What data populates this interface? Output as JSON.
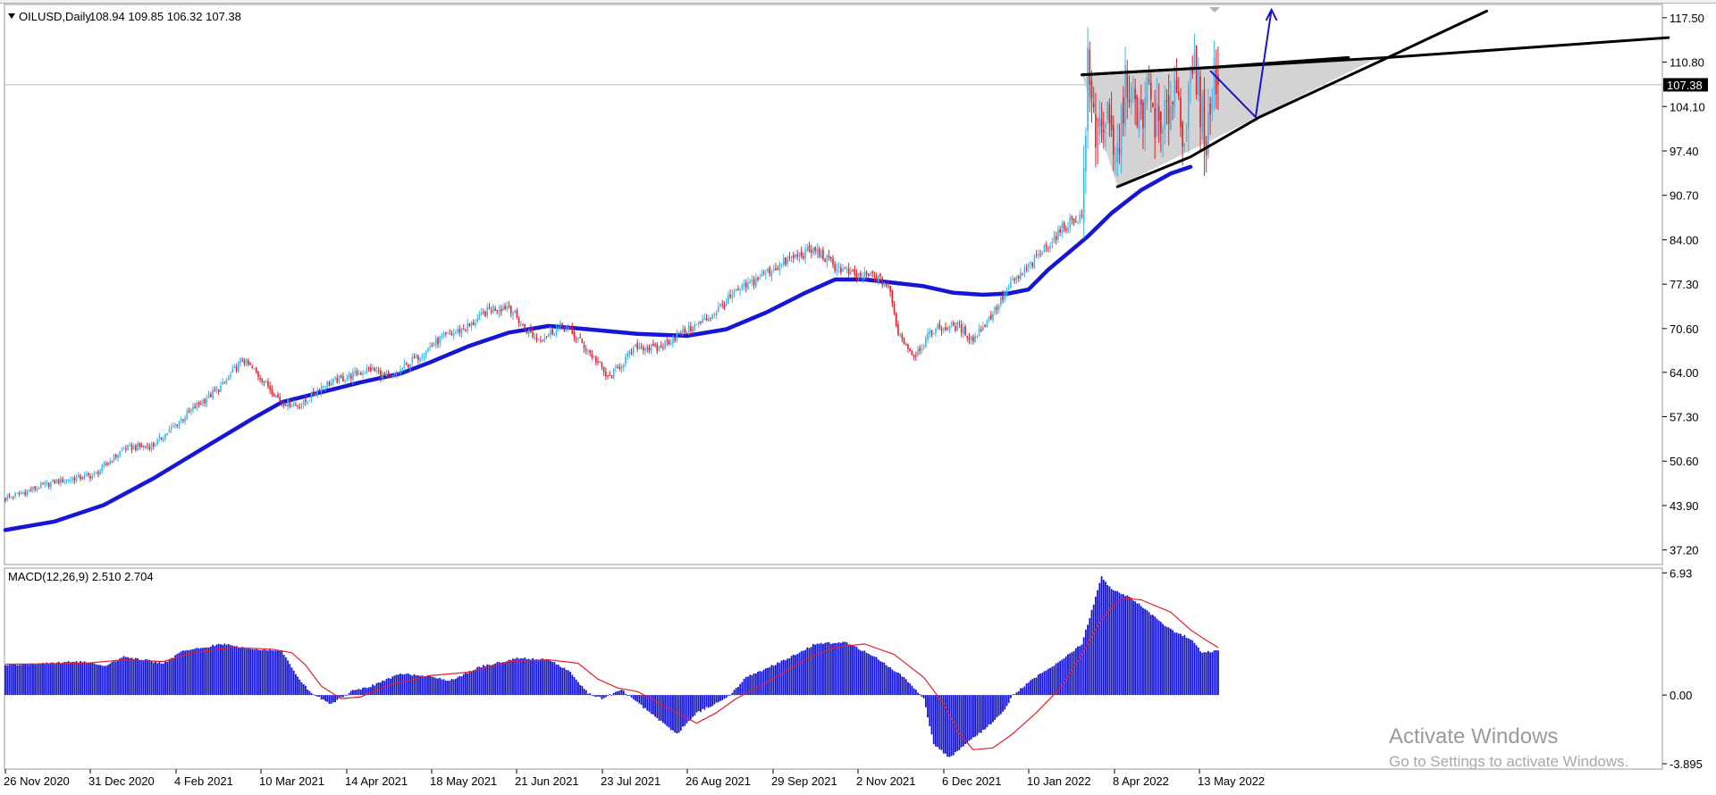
{
  "window": {
    "symbol_label": "OILUSD,Daily",
    "ohlc_label": "108.94 109.85 106.32 107.38",
    "current_price_label": "107.38"
  },
  "macd_panel": {
    "label": "MACD(12,26,9) 2.510 2.704"
  },
  "watermark": {
    "line1": "Activate Windows",
    "line2": "Go to Settings to activate Windows."
  },
  "colors": {
    "bull": "#39b6ea",
    "bear": "#e0202a",
    "ma": "#1616d6",
    "histogram": "#1414d2",
    "signal": "#e0202a",
    "triangle_fill": "#d3d3d3",
    "trendline": "#000000",
    "arrow": "#1414d2"
  },
  "chart_data": [
    {
      "type": "candlestick",
      "symbol": "OILUSD",
      "timeframe": "Daily",
      "y_ticks": [
        "117.50",
        "110.80",
        "104.10",
        "97.40",
        "90.70",
        "84.00",
        "77.30",
        "70.60",
        "64.00",
        "57.30",
        "50.60",
        "43.90",
        "37.20"
      ],
      "ylim": [
        35.0,
        119.5
      ],
      "x_ticks": [
        "26 Nov 2020",
        "31 Dec 2020",
        "4 Feb 2021",
        "10 Mar 2021",
        "14 Apr 2021",
        "18 May 2021",
        "21 Jun 2021",
        "23 Jul 2021",
        "26 Aug 2021",
        "29 Sep 2021",
        "2 Nov 2021",
        "6 Dec 2021",
        "10 Jan 2022",
        "8 Apr 2022",
        "13 May 2022"
      ],
      "last_close": 107.38,
      "price_path": [
        [
          0,
          45.0
        ],
        [
          25,
          47.5
        ],
        [
          45,
          48.5
        ],
        [
          60,
          52.5
        ],
        [
          75,
          53.0
        ],
        [
          95,
          58.5
        ],
        [
          110,
          62.0
        ],
        [
          120,
          66.0
        ],
        [
          130,
          63.0
        ],
        [
          140,
          59.5
        ],
        [
          150,
          59.0
        ],
        [
          160,
          62.0
        ],
        [
          175,
          63.5
        ],
        [
          185,
          64.5
        ],
        [
          195,
          63.0
        ],
        [
          205,
          65.5
        ],
        [
          220,
          69.0
        ],
        [
          235,
          71.0
        ],
        [
          245,
          73.5
        ],
        [
          255,
          74.0
        ],
        [
          263,
          70.5
        ],
        [
          270,
          69.0
        ],
        [
          282,
          71.0
        ],
        [
          290,
          69.0
        ],
        [
          300,
          65.5
        ],
        [
          305,
          63.0
        ],
        [
          320,
          68.0
        ],
        [
          330,
          67.5
        ],
        [
          340,
          69.5
        ],
        [
          355,
          72.0
        ],
        [
          370,
          76.0
        ],
        [
          385,
          79.0
        ],
        [
          400,
          81.5
        ],
        [
          410,
          82.5
        ],
        [
          420,
          80.0
        ],
        [
          430,
          78.5
        ],
        [
          440,
          78.5
        ],
        [
          447,
          77.0
        ],
        [
          452,
          70.0
        ],
        [
          460,
          66.5
        ],
        [
          470,
          70.5
        ],
        [
          482,
          71.0
        ],
        [
          490,
          69.0
        ],
        [
          500,
          73.0
        ],
        [
          510,
          77.5
        ],
        [
          520,
          80.5
        ],
        [
          530,
          84.0
        ],
        [
          538,
          86.5
        ],
        [
          545,
          87.5
        ],
        [
          548,
          109.5
        ],
        [
          552,
          100.0
        ],
        [
          557,
          103.0
        ],
        [
          562,
          94.5
        ],
        [
          568,
          109.0
        ],
        [
          573,
          101.0
        ],
        [
          579,
          106.5
        ],
        [
          585,
          99.0
        ],
        [
          592,
          108.0
        ],
        [
          597,
          100.0
        ],
        [
          602,
          109.5
        ],
        [
          608,
          99.0
        ],
        [
          612,
          109.0
        ],
        [
          614,
          107.38
        ]
      ],
      "moving_average": [
        [
          0,
          40.2
        ],
        [
          25,
          41.5
        ],
        [
          50,
          44.0
        ],
        [
          75,
          48.0
        ],
        [
          100,
          52.5
        ],
        [
          125,
          57.0
        ],
        [
          140,
          59.5
        ],
        [
          160,
          61.0
        ],
        [
          180,
          62.5
        ],
        [
          200,
          63.8
        ],
        [
          215,
          65.5
        ],
        [
          235,
          68.0
        ],
        [
          255,
          70.0
        ],
        [
          275,
          71.0
        ],
        [
          295,
          70.5
        ],
        [
          320,
          69.8
        ],
        [
          345,
          69.5
        ],
        [
          365,
          70.5
        ],
        [
          385,
          73.0
        ],
        [
          405,
          76.0
        ],
        [
          420,
          78.0
        ],
        [
          435,
          78.0
        ],
        [
          450,
          77.5
        ],
        [
          465,
          77.0
        ],
        [
          480,
          76.0
        ],
        [
          495,
          75.7
        ],
        [
          508,
          75.9
        ],
        [
          518,
          76.5
        ],
        [
          528,
          79.5
        ],
        [
          538,
          82.0
        ],
        [
          548,
          84.5
        ],
        [
          560,
          88.0
        ],
        [
          575,
          91.5
        ],
        [
          590,
          94.0
        ],
        [
          600,
          95.0
        ]
      ],
      "annotations": {
        "triangle_top": [
          [
            545,
            108.9
          ],
          [
            610,
            110.0
          ],
          [
            680,
            111.5
          ]
        ],
        "lower_trendline": [
          [
            563,
            92.0
          ],
          [
            600,
            96.5
          ],
          [
            635,
            102.5
          ],
          [
            700,
            111.5
          ],
          [
            750,
            118.5
          ]
        ],
        "upper_trendline": [
          [
            545,
            108.9
          ],
          [
            700,
            111.5
          ],
          [
            842,
            114.5
          ]
        ],
        "wedge_fill_corners": [
          [
            545,
            108.9
          ],
          [
            695,
            111.5
          ],
          [
            563,
            92.0
          ]
        ],
        "forecast_arrow": [
          [
            610,
            109.5
          ],
          [
            633,
            102.5
          ],
          [
            641,
            118.7
          ]
        ]
      }
    },
    {
      "type": "bar",
      "name": "MACD(12,26,9)",
      "macd_value": 2.51,
      "signal_value": 2.704,
      "y_ticks": [
        "6.93",
        "0.00",
        "-3.895"
      ],
      "ylim": [
        -4.2,
        7.2
      ],
      "histogram_path": [
        [
          0,
          1.7
        ],
        [
          20,
          1.8
        ],
        [
          40,
          1.9
        ],
        [
          50,
          1.6
        ],
        [
          60,
          2.2
        ],
        [
          70,
          2.0
        ],
        [
          80,
          1.8
        ],
        [
          90,
          2.5
        ],
        [
          110,
          2.9
        ],
        [
          125,
          2.6
        ],
        [
          140,
          2.5
        ],
        [
          148,
          1.0
        ],
        [
          155,
          0.1
        ],
        [
          165,
          -0.5
        ],
        [
          175,
          0.2
        ],
        [
          185,
          0.5
        ],
        [
          200,
          1.2
        ],
        [
          215,
          1.1
        ],
        [
          225,
          0.8
        ],
        [
          240,
          1.6
        ],
        [
          260,
          2.1
        ],
        [
          275,
          2.0
        ],
        [
          285,
          1.4
        ],
        [
          295,
          0.1
        ],
        [
          302,
          -0.2
        ],
        [
          312,
          0.3
        ],
        [
          322,
          -0.6
        ],
        [
          340,
          -2.2
        ],
        [
          350,
          -1.0
        ],
        [
          365,
          -0.2
        ],
        [
          375,
          1.0
        ],
        [
          395,
          2.0
        ],
        [
          410,
          2.9
        ],
        [
          425,
          3.0
        ],
        [
          440,
          2.2
        ],
        [
          455,
          1.0
        ],
        [
          465,
          -0.2
        ],
        [
          470,
          -2.8
        ],
        [
          478,
          -3.55
        ],
        [
          485,
          -2.9
        ],
        [
          495,
          -2.0
        ],
        [
          505,
          -1.0
        ],
        [
          510,
          0.0
        ],
        [
          520,
          0.9
        ],
        [
          535,
          2.0
        ],
        [
          545,
          2.9
        ],
        [
          550,
          4.8
        ],
        [
          555,
          6.7
        ],
        [
          560,
          6.0
        ],
        [
          570,
          5.5
        ],
        [
          580,
          4.6
        ],
        [
          590,
          3.7
        ],
        [
          600,
          3.2
        ],
        [
          606,
          2.4
        ],
        [
          614,
          2.51
        ]
      ],
      "signal_path": [
        [
          0,
          1.75
        ],
        [
          40,
          1.8
        ],
        [
          60,
          2.0
        ],
        [
          80,
          1.9
        ],
        [
          95,
          2.4
        ],
        [
          115,
          2.7
        ],
        [
          135,
          2.6
        ],
        [
          145,
          2.4
        ],
        [
          152,
          1.7
        ],
        [
          160,
          0.5
        ],
        [
          170,
          -0.2
        ],
        [
          180,
          -0.1
        ],
        [
          195,
          0.6
        ],
        [
          215,
          1.1
        ],
        [
          235,
          1.3
        ],
        [
          255,
          1.9
        ],
        [
          275,
          2.0
        ],
        [
          290,
          1.8
        ],
        [
          300,
          0.9
        ],
        [
          310,
          0.4
        ],
        [
          320,
          0.2
        ],
        [
          335,
          -0.7
        ],
        [
          350,
          -1.6
        ],
        [
          360,
          -1.0
        ],
        [
          370,
          -0.2
        ],
        [
          390,
          1.0
        ],
        [
          405,
          2.0
        ],
        [
          420,
          2.7
        ],
        [
          435,
          2.9
        ],
        [
          450,
          2.3
        ],
        [
          465,
          1.0
        ],
        [
          475,
          -0.5
        ],
        [
          483,
          -2.2
        ],
        [
          490,
          -3.1
        ],
        [
          500,
          -3.0
        ],
        [
          510,
          -2.2
        ],
        [
          522,
          -1.0
        ],
        [
          535,
          0.5
        ],
        [
          545,
          2.3
        ],
        [
          555,
          4.3
        ],
        [
          565,
          5.5
        ],
        [
          575,
          5.4
        ],
        [
          590,
          4.7
        ],
        [
          600,
          3.7
        ],
        [
          608,
          3.1
        ],
        [
          614,
          2.7
        ]
      ]
    }
  ]
}
